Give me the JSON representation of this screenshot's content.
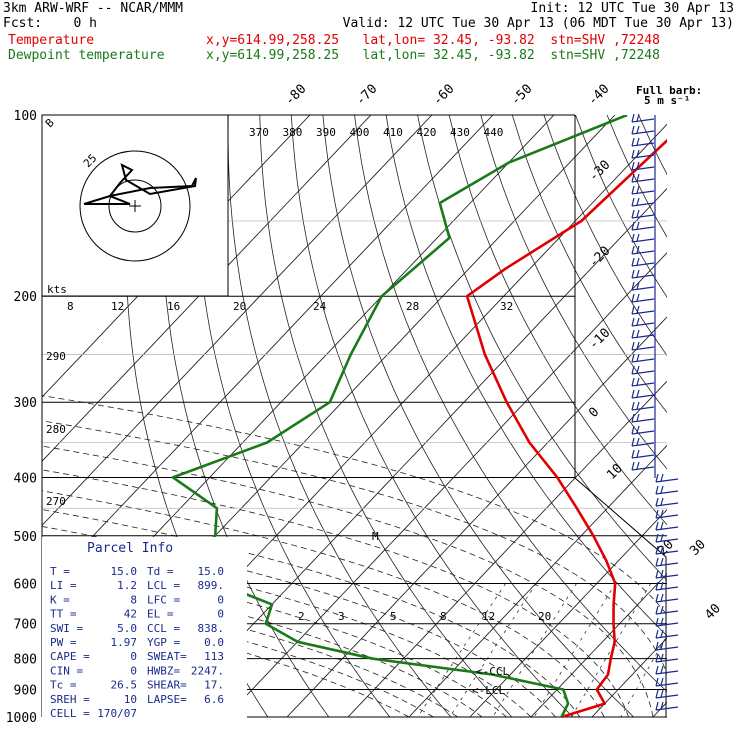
{
  "header": {
    "model": "3km ARW-WRF -- NCAR/MMM",
    "init": "Init: 12 UTC Tue 30 Apr 13",
    "fcst": "Fcst:    0 h",
    "valid": "Valid: 12 UTC Tue 30 Apr 13 (06 MDT Tue 30 Apr 13)",
    "temp_label": "Temperature",
    "temp_info": "x,y=614.99,258.25   lat,lon= 32.45, -93.82  stn=SHV ,72248",
    "dew_label": "Dewpoint temperature",
    "dew_info": "x,y=614.99,258.25   lat,lon= 32.45, -93.82  stn=SHV ,72248"
  },
  "barb_legend": {
    "line1": "Full barb:",
    "line2": "5 m s⁻¹"
  },
  "hodograph": {
    "units": "kts",
    "ring_labels": [
      "25"
    ],
    "marker": "B"
  },
  "parcel_info": {
    "title": "Parcel Info",
    "rows": [
      {
        "l": "T   =",
        "lv": "15.0",
        "r": "Td =",
        "rv": "15.0"
      },
      {
        "l": "LI  =",
        "lv": "1.2",
        "r": "LCL =",
        "rv": "899."
      },
      {
        "l": "K   =",
        "lv": "8",
        "r": "LFC =",
        "rv": "0"
      },
      {
        "l": "TT  =",
        "lv": "42",
        "r": "EL  =",
        "rv": "0"
      },
      {
        "l": "SWI =",
        "lv": "5.0",
        "r": "CCL =",
        "rv": "838."
      },
      {
        "l": "PW  =",
        "lv": "1.97",
        "r": "YGP =",
        "rv": "0.0"
      },
      {
        "l": "CAPE =",
        "lv": "0",
        "r": "SWEAT=",
        "rv": "113"
      },
      {
        "l": "CIN =",
        "lv": "0",
        "r": "HWBZ=",
        "rv": "2247."
      },
      {
        "l": "Tc  =",
        "lv": "26.5",
        "r": "SHEAR=",
        "rv": "17."
      },
      {
        "l": "SREH =",
        "lv": "10",
        "r": "LAPSE=",
        "rv": "6.6"
      },
      {
        "l": "CELL =",
        "lv": "170/07",
        "r": "",
        "rv": ""
      }
    ]
  },
  "annotations": {
    "ccl": "<-CCL",
    "lcl": "<-LCL",
    "m": "M"
  },
  "colors": {
    "temperature": "#e00000",
    "dewpoint": "#1a7a1a",
    "barbs": "#1a2a8a"
  },
  "chart_data": {
    "type": "line",
    "pressure_levels_hPa": [
      100,
      200,
      300,
      400,
      500,
      600,
      700,
      800,
      900,
      1000
    ],
    "pressure_ticks": [
      "100",
      "200",
      "300",
      "400",
      "500",
      "600",
      "700",
      "800",
      "900",
      "1000"
    ],
    "isotherm_labels_top": [
      "-80",
      "-70",
      "-60",
      "-50",
      "-40"
    ],
    "isotherm_labels_right": [
      "-30",
      "-20",
      "-10",
      "0",
      "10",
      "20",
      "30",
      "40"
    ],
    "theta_labels": [
      "370",
      "380",
      "390",
      "400",
      "410",
      "420",
      "430",
      "440"
    ],
    "wind_speed_labels": [
      "8",
      "12",
      "16",
      "20",
      "24",
      "28",
      "32"
    ],
    "theta_left_labels": [
      "290",
      "280",
      "270"
    ],
    "mixing_ratio_labels": [
      "2",
      "3",
      "5",
      "8",
      "12",
      "20"
    ],
    "series": [
      {
        "name": "Temperature",
        "color": "#e00000",
        "points": [
          [
            100,
            -57
          ],
          [
            150,
            -59
          ],
          [
            180,
            -64
          ],
          [
            200,
            -66
          ],
          [
            250,
            -54
          ],
          [
            300,
            -43
          ],
          [
            350,
            -33
          ],
          [
            400,
            -23
          ],
          [
            450,
            -15
          ],
          [
            500,
            -8
          ],
          [
            550,
            -2
          ],
          [
            600,
            3
          ],
          [
            650,
            6
          ],
          [
            700,
            9
          ],
          [
            750,
            12
          ],
          [
            800,
            14
          ],
          [
            850,
            16
          ],
          [
            900,
            16.5
          ],
          [
            950,
            20
          ],
          [
            1000,
            15
          ]
        ]
      },
      {
        "name": "Dewpoint temperature",
        "color": "#1a7a1a",
        "points": [
          [
            100,
            -68
          ],
          [
            120,
            -80
          ],
          [
            140,
            -85
          ],
          [
            160,
            -78
          ],
          [
            200,
            -80
          ],
          [
            250,
            -76
          ],
          [
            300,
            -72
          ],
          [
            350,
            -76
          ],
          [
            400,
            -86
          ],
          [
            450,
            -74
          ],
          [
            500,
            -70
          ],
          [
            550,
            -70
          ],
          [
            600,
            -62
          ],
          [
            650,
            -50
          ],
          [
            700,
            -48
          ],
          [
            750,
            -40
          ],
          [
            800,
            -25
          ],
          [
            850,
            -3
          ],
          [
            900,
            11
          ],
          [
            950,
            14
          ],
          [
            1000,
            15
          ]
        ]
      }
    ]
  }
}
